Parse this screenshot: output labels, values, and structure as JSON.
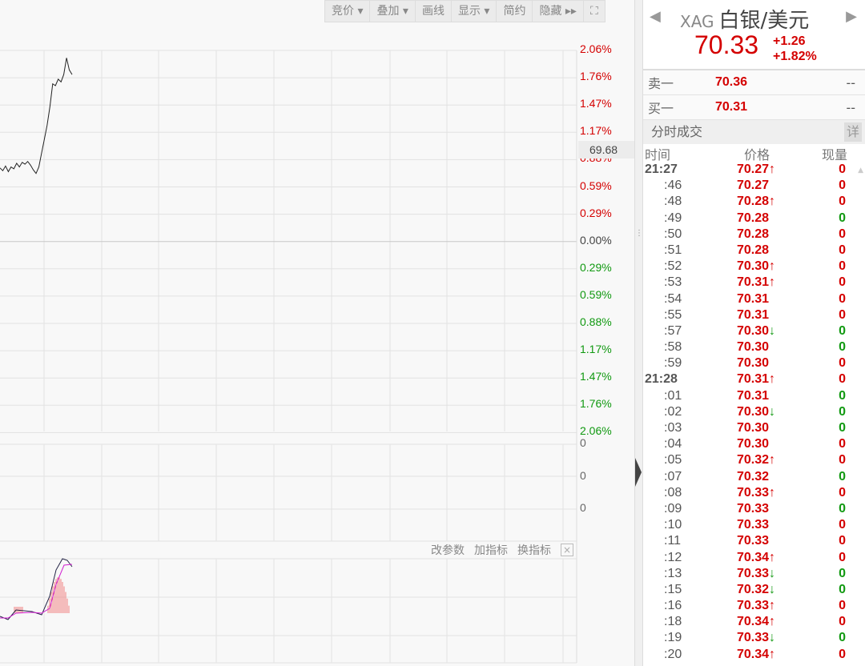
{
  "toolbar": [
    "竞价 ▾",
    "叠加 ▾",
    "画线",
    "显示 ▾",
    "简约",
    "隐藏 ▸▸",
    "⛶"
  ],
  "y_axis_labels": [
    {
      "text": "2.06%",
      "color": "#d40000"
    },
    {
      "text": "1.76%",
      "color": "#d40000"
    },
    {
      "text": "1.47%",
      "color": "#d40000"
    },
    {
      "text": "1.17%",
      "color": "#d40000"
    },
    {
      "text": "0.88%",
      "color": "#d40000"
    },
    {
      "text": "0.59%",
      "color": "#d40000"
    },
    {
      "text": "0.29%",
      "color": "#d40000"
    },
    {
      "text": "0.00%",
      "color": "#444444"
    },
    {
      "text": "0.29%",
      "color": "#119911"
    },
    {
      "text": "0.59%",
      "color": "#119911"
    },
    {
      "text": "0.88%",
      "color": "#119911"
    },
    {
      "text": "1.17%",
      "color": "#119911"
    },
    {
      "text": "1.47%",
      "color": "#119911"
    },
    {
      "text": "1.76%",
      "color": "#119911"
    },
    {
      "text": "2.06%",
      "color": "#119911"
    }
  ],
  "price_tag": "69.68",
  "volume_axis_labels": [
    "0",
    "0",
    "0"
  ],
  "indicator_bar": {
    "edit": "改参数",
    "add": "加指标",
    "switch": "换指标",
    "close": "×"
  },
  "price_line_pct": [
    0.79,
    0.76,
    0.81,
    0.75,
    0.8,
    0.78,
    0.84,
    0.8,
    0.85,
    0.83,
    0.86,
    0.82,
    0.77,
    0.73,
    0.8,
    0.95,
    1.1,
    1.25,
    1.45,
    1.7,
    1.68,
    1.75,
    1.72,
    1.8,
    1.98,
    1.85,
    1.8
  ],
  "header": {
    "code": "XAG",
    "name": "白银/美元",
    "price": "70.33",
    "change": "+1.26",
    "change_pct": "+1.82%"
  },
  "quotes": [
    {
      "label": "卖一",
      "price": "70.36",
      "vol": "--"
    },
    {
      "label": "买一",
      "price": "70.31",
      "vol": "--"
    }
  ],
  "trades_section": {
    "title": "分时成交",
    "detail": "详",
    "cols": [
      "时间",
      "价格",
      "现量"
    ]
  },
  "trades": [
    {
      "t": "21:27",
      "p": "70.27",
      "a": "up",
      "v": "0",
      "vc": "up"
    },
    {
      "t": ":46",
      "p": "70.27",
      "a": "",
      "v": "0",
      "vc": "up"
    },
    {
      "t": ":48",
      "p": "70.28",
      "a": "up",
      "v": "0",
      "vc": "up"
    },
    {
      "t": ":49",
      "p": "70.28",
      "a": "",
      "v": "0",
      "vc": "dn"
    },
    {
      "t": ":50",
      "p": "70.28",
      "a": "",
      "v": "0",
      "vc": "up"
    },
    {
      "t": ":51",
      "p": "70.28",
      "a": "",
      "v": "0",
      "vc": "up"
    },
    {
      "t": ":52",
      "p": "70.30",
      "a": "up",
      "v": "0",
      "vc": "up"
    },
    {
      "t": ":53",
      "p": "70.31",
      "a": "up",
      "v": "0",
      "vc": "up"
    },
    {
      "t": ":54",
      "p": "70.31",
      "a": "",
      "v": "0",
      "vc": "up"
    },
    {
      "t": ":55",
      "p": "70.31",
      "a": "",
      "v": "0",
      "vc": "up"
    },
    {
      "t": ":57",
      "p": "70.30",
      "a": "dn",
      "v": "0",
      "vc": "dn"
    },
    {
      "t": ":58",
      "p": "70.30",
      "a": "",
      "v": "0",
      "vc": "dn"
    },
    {
      "t": ":59",
      "p": "70.30",
      "a": "",
      "v": "0",
      "vc": "up"
    },
    {
      "t": "21:28",
      "p": "70.31",
      "a": "up",
      "v": "0",
      "vc": "up"
    },
    {
      "t": ":01",
      "p": "70.31",
      "a": "",
      "v": "0",
      "vc": "dn"
    },
    {
      "t": ":02",
      "p": "70.30",
      "a": "dn",
      "v": "0",
      "vc": "dn"
    },
    {
      "t": ":03",
      "p": "70.30",
      "a": "",
      "v": "0",
      "vc": "dn"
    },
    {
      "t": ":04",
      "p": "70.30",
      "a": "",
      "v": "0",
      "vc": "up"
    },
    {
      "t": ":05",
      "p": "70.32",
      "a": "up",
      "v": "0",
      "vc": "up"
    },
    {
      "t": ":07",
      "p": "70.32",
      "a": "",
      "v": "0",
      "vc": "dn"
    },
    {
      "t": ":08",
      "p": "70.33",
      "a": "up",
      "v": "0",
      "vc": "up"
    },
    {
      "t": ":09",
      "p": "70.33",
      "a": "",
      "v": "0",
      "vc": "dn"
    },
    {
      "t": ":10",
      "p": "70.33",
      "a": "",
      "v": "0",
      "vc": "up"
    },
    {
      "t": ":11",
      "p": "70.33",
      "a": "",
      "v": "0",
      "vc": "up"
    },
    {
      "t": ":12",
      "p": "70.34",
      "a": "up",
      "v": "0",
      "vc": "up"
    },
    {
      "t": ":13",
      "p": "70.33",
      "a": "dn",
      "v": "0",
      "vc": "dn"
    },
    {
      "t": ":15",
      "p": "70.32",
      "a": "dn",
      "v": "0",
      "vc": "dn"
    },
    {
      "t": ":16",
      "p": "70.33",
      "a": "up",
      "v": "0",
      "vc": "up"
    },
    {
      "t": ":18",
      "p": "70.34",
      "a": "up",
      "v": "0",
      "vc": "up"
    },
    {
      "t": ":19",
      "p": "70.33",
      "a": "dn",
      "v": "0",
      "vc": "dn"
    },
    {
      "t": ":20",
      "p": "70.34",
      "a": "up",
      "v": "0",
      "vc": "up"
    }
  ]
}
